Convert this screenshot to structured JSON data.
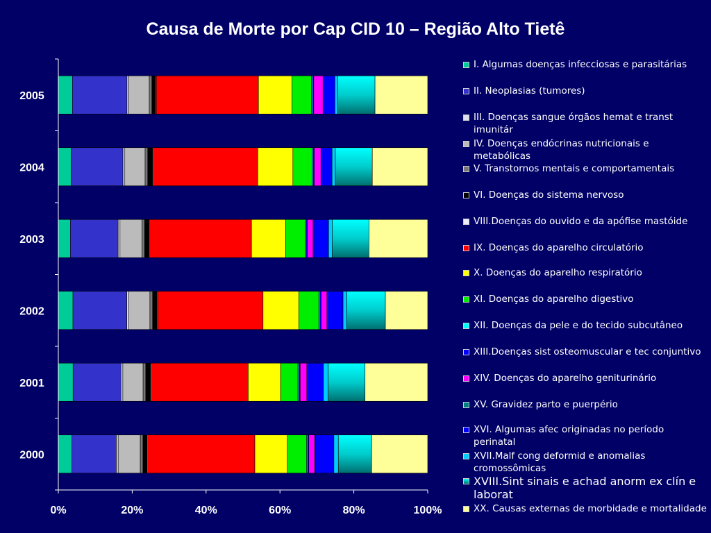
{
  "chart_data": {
    "type": "bar",
    "orientation": "horizontal",
    "stacked": "percent",
    "title": "Causa de Morte por Cap CID 10 – Região Alto Tietê",
    "categories": [
      "2005",
      "2004",
      "2003",
      "2002",
      "2001",
      "2000"
    ],
    "x_tick_labels": [
      "0%",
      "20%",
      "40%",
      "60%",
      "80%",
      "100%"
    ],
    "xlim": [
      0,
      100
    ],
    "grid": false,
    "legend_position": "right",
    "series": [
      {
        "name": "I.   Algumas doenças infecciosas e parasitárias",
        "color": "#00cc99",
        "values": [
          3.8,
          3.5,
          3.3,
          3.8,
          4.0,
          3.7
        ]
      },
      {
        "name": "II.  Neoplasias (tumores)",
        "color": "#3333cc",
        "values": [
          14.7,
          14.0,
          13.0,
          14.0,
          13.0,
          12.0
        ]
      },
      {
        "name": "III. Doenças sangue órgãos hemat e transt imunitár",
        "color": "#ddddee",
        "values": [
          0.5,
          0.5,
          0.5,
          0.5,
          0.5,
          0.5
        ]
      },
      {
        "name": "IV.  Doenças endócrinas nutricionais e metabólicas",
        "color": "#bbbbbb",
        "values": [
          5.5,
          5.5,
          6.0,
          5.5,
          5.5,
          6.0
        ]
      },
      {
        "name": "V.    Transtornos mentais e comportamentais",
        "color": "#777777",
        "values": [
          0.7,
          0.7,
          0.7,
          0.7,
          0.7,
          0.7
        ]
      },
      {
        "name": "VI.  Doenças do sistema nervoso",
        "color": "#000000",
        "values": [
          1.0,
          1.3,
          1.2,
          1.2,
          1.3,
          1.1
        ]
      },
      {
        "name": "VIII.Doenças do ouvido e da apófise mastóide",
        "color": "#eeeeff",
        "values": [
          0.2,
          0.2,
          0.2,
          0.2,
          0.2,
          0.2
        ]
      },
      {
        "name": "IX.  Doenças do aparelho circulatório",
        "color": "#ff0000",
        "values": [
          27.5,
          28.3,
          27.7,
          27.3,
          26.3,
          29.0
        ]
      },
      {
        "name": "X.   Doenças do aparelho respiratório",
        "color": "#ffff00",
        "values": [
          9.0,
          9.5,
          9.3,
          9.3,
          8.8,
          8.8
        ]
      },
      {
        "name": "XI.  Doenças do aparelho digestivo",
        "color": "#00ee00",
        "values": [
          5.3,
          5.2,
          5.3,
          5.2,
          4.7,
          5.2
        ]
      },
      {
        "name": "XII. Doenças da pele e do tecido subcutâneo",
        "color": "#00ffff",
        "values": [
          0.3,
          0.3,
          0.3,
          0.3,
          0.3,
          0.3
        ]
      },
      {
        "name": "XIII.Doenças sist osteomuscular e tec conjuntivo",
        "color": "#0000ff",
        "values": [
          0.3,
          0.3,
          0.3,
          0.3,
          0.3,
          0.3
        ]
      },
      {
        "name": "XIV. Doenças do aparelho geniturinário",
        "color": "#ff00ff",
        "values": [
          2.5,
          1.8,
          1.6,
          1.5,
          1.8,
          1.6
        ]
      },
      {
        "name": "XV.  Gravidez parto e puerpério",
        "color": "#008080",
        "values": [
          0.2,
          0.2,
          0.2,
          0.2,
          0.2,
          0.2
        ]
      },
      {
        "name": "XVI. Algumas afec originadas no período perinatal",
        "color": "#0000ff",
        "values": [
          3.0,
          2.8,
          4.0,
          4.0,
          4.3,
          5.0
        ]
      },
      {
        "name": "XVII.Malf cong deformid e anomalias cromossômicas",
        "color": "#00ccff",
        "values": [
          0.8,
          0.9,
          1.0,
          1.0,
          1.3,
          1.2
        ]
      },
      {
        "name": "XVIII.Sint sinais e achad anorm ex clín e laborat",
        "color": "#00dddd",
        "values": [
          10.0,
          10.0,
          10.0,
          10.0,
          10.0,
          9.0
        ]
      },
      {
        "name": "XX.  Causas externas de morbidade e mortalidade",
        "color": "#ffff99",
        "values": [
          14.2,
          15.0,
          16.0,
          11.0,
          17.0,
          15.2
        ]
      }
    ]
  }
}
